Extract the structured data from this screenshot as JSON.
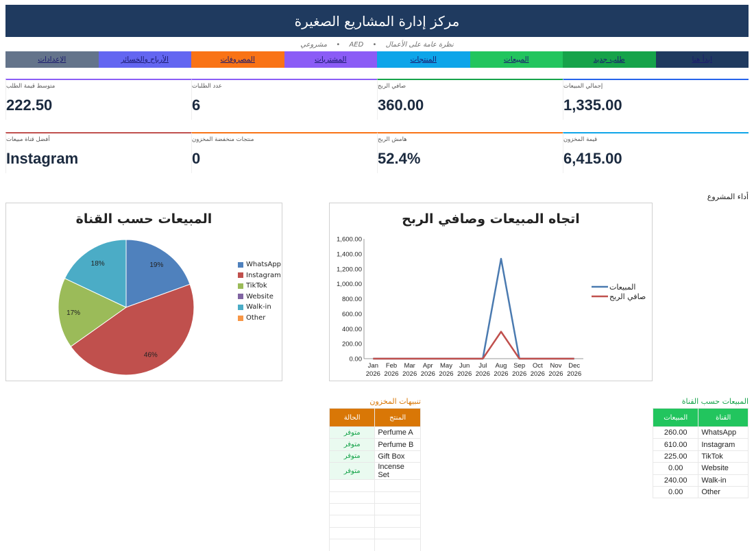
{
  "header": {
    "title": "مركز إدارة المشاريع الصغيرة",
    "sub_text": "نظرة عامة على الأعمال",
    "currency": "AED",
    "project": "مشروعي",
    "separator": "•"
  },
  "nav": [
    {
      "label": "ابدأ هنا",
      "color": "#1f3a5f"
    },
    {
      "label": "طلب جديد",
      "color": "#16a34a"
    },
    {
      "label": "المبيعات",
      "color": "#22c55e"
    },
    {
      "label": "المنتجات",
      "color": "#0ea5e9"
    },
    {
      "label": "المشتريات",
      "color": "#8b5cf6"
    },
    {
      "label": "المصروفات",
      "color": "#f97316"
    },
    {
      "label": "الأرباح والخسائر",
      "color": "#6366f1"
    },
    {
      "label": "الإعدادات",
      "color": "#64748b"
    }
  ],
  "kpis_row1": [
    {
      "label": "إجمالي المبيعات",
      "value": "1,335.00",
      "color": "#2563eb"
    },
    {
      "label": "صافي الربح",
      "value": "360.00",
      "color": "#16a34a"
    },
    {
      "label": "عدد الطلبات",
      "value": "6",
      "color": "#8b5cf6"
    },
    {
      "label": "متوسط قيمة الطلب",
      "value": "222.50",
      "color": "#8b5cf6"
    }
  ],
  "kpis_row2": [
    {
      "label": "قيمة المخزون",
      "value": "6,415.00",
      "color": "#0ea5e9"
    },
    {
      "label": "هامش الربح",
      "value": "52.4%",
      "color": "#f97316"
    },
    {
      "label": "منتجات منخفضة المخزون",
      "value": "0",
      "color": "#f97316"
    },
    {
      "label": "أفضل قناة مبيعات",
      "value": "Instagram",
      "color": "#c0504d"
    }
  ],
  "section_label": "أداء المشروع",
  "chart_data": [
    {
      "type": "pie",
      "title": "المبيعات حسب القناة",
      "categories": [
        "WhatsApp",
        "Instagram",
        "TikTok",
        "Website",
        "Walk-in",
        "Other"
      ],
      "values": [
        260,
        610,
        225,
        0,
        240,
        0
      ],
      "data_labels": [
        "19%",
        "46%",
        "17%",
        "",
        "18%",
        ""
      ],
      "colors": [
        "#4f81bd",
        "#c0504d",
        "#9bbb59",
        "#8064a2",
        "#4bacc6",
        "#f79646"
      ],
      "legend": "right"
    },
    {
      "type": "line",
      "title": "اتجاه المبيعات وصافي الربح",
      "categories": [
        "Jan 2026",
        "Feb 2026",
        "Mar 2026",
        "Apr 2026",
        "May 2026",
        "Jun 2026",
        "Jul 2026",
        "Aug 2026",
        "Sep 2026",
        "Oct 2026",
        "Nov 2026",
        "Dec 2026"
      ],
      "series": [
        {
          "name": "المبيعات",
          "color": "#4a7ab0",
          "values": [
            0,
            0,
            0,
            0,
            0,
            0,
            0,
            1335,
            0,
            0,
            0,
            0
          ]
        },
        {
          "name": "صافي الربح",
          "color": "#c0504d",
          "values": [
            0,
            0,
            0,
            0,
            0,
            0,
            0,
            360,
            0,
            0,
            0,
            0
          ]
        }
      ],
      "ylim": [
        0,
        1600
      ],
      "yticks": [
        "0.00",
        "200.00",
        "400.00",
        "600.00",
        "800.00",
        "1,000.00",
        "1,200.00",
        "1,400.00",
        "1,600.00"
      ],
      "legend": "right"
    }
  ],
  "stock_alerts": {
    "title": "تنبيهات المخزون",
    "col_product": "المنتج",
    "col_status": "الحالة",
    "header_color": "#d97706",
    "rows": [
      {
        "product": "Perfume A",
        "status": "متوفر"
      },
      {
        "product": "Perfume B",
        "status": "متوفر"
      },
      {
        "product": "Gift Box",
        "status": "متوفر"
      },
      {
        "product": "Incense Set",
        "status": "متوفر"
      }
    ],
    "empty_rows": 6
  },
  "channel_sales": {
    "title": "المبيعات حسب القناة",
    "col_channel": "القناة",
    "col_sales": "المبيعات",
    "header_color": "#22c55e",
    "rows": [
      {
        "channel": "WhatsApp",
        "sales": "260.00"
      },
      {
        "channel": "Instagram",
        "sales": "610.00"
      },
      {
        "channel": "TikTok",
        "sales": "225.00"
      },
      {
        "channel": "Website",
        "sales": "0.00"
      },
      {
        "channel": "Walk-in",
        "sales": "240.00"
      },
      {
        "channel": "Other",
        "sales": "0.00"
      }
    ]
  }
}
